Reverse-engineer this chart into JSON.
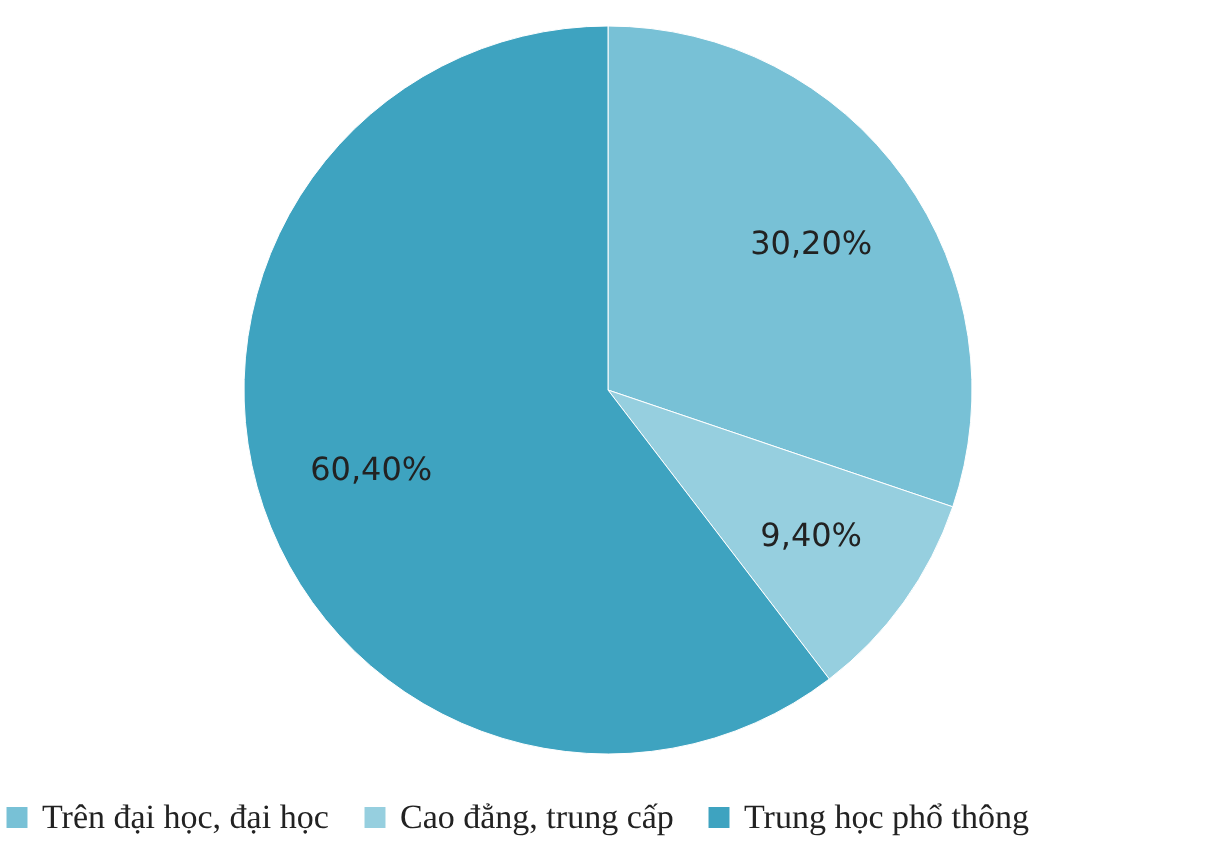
{
  "chart_data": {
    "type": "pie",
    "categories": [
      "Trên đại học, đại học",
      "Cao đẳng, trung cấp",
      "Trung  học phổ thông"
    ],
    "values": [
      30.2,
      9.4,
      60.4
    ],
    "colors": [
      "#78c1d6",
      "#96cfdf",
      "#3ea3c0"
    ],
    "value_labels": [
      "30,20%",
      "9,40%",
      "60,40%"
    ],
    "legend": "bottom"
  }
}
